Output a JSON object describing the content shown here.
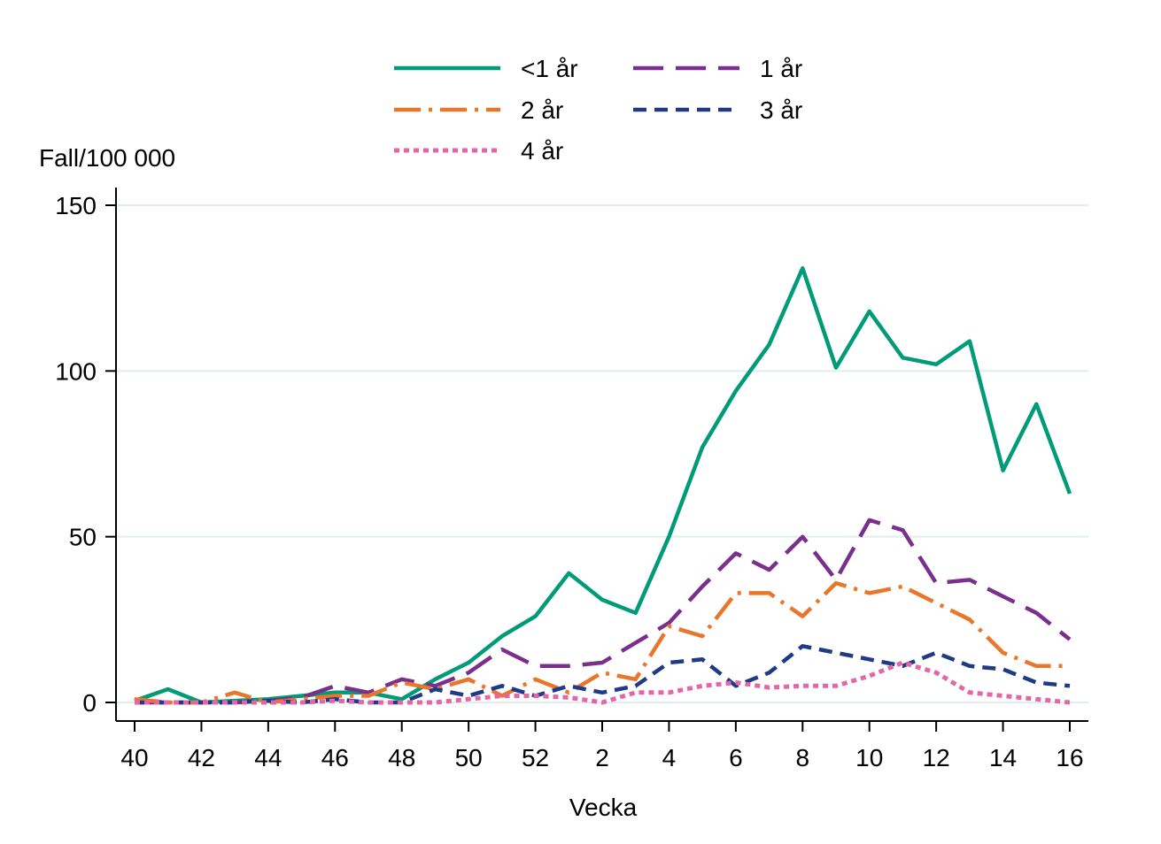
{
  "chart_data": {
    "type": "line",
    "title": "",
    "ylabel": "Fall/100 000",
    "xlabel": "Vecka",
    "ylim": [
      0,
      150
    ],
    "yticks": [
      0,
      50,
      100,
      150
    ],
    "grid": true,
    "legend_position": "top",
    "x": [
      "40",
      "41",
      "42",
      "43",
      "44",
      "45",
      "46",
      "47",
      "48",
      "49",
      "50",
      "51",
      "52",
      "1",
      "2",
      "3",
      "4",
      "5",
      "6",
      "7",
      "8",
      "9",
      "10",
      "11",
      "12",
      "13",
      "14",
      "15",
      "16"
    ],
    "xtick_labels": [
      "40",
      "42",
      "44",
      "46",
      "48",
      "50",
      "52",
      "2",
      "4",
      "6",
      "8",
      "10",
      "12",
      "14",
      "16"
    ],
    "series": [
      {
        "name": "<1 år",
        "color": "#009B77",
        "dash": "solid",
        "values": [
          0.5,
          4,
          0,
          0.5,
          1,
          2,
          3,
          3,
          1,
          7,
          12,
          20,
          26,
          39,
          31,
          27,
          50,
          77,
          94,
          108,
          131,
          101,
          118,
          104,
          102,
          109,
          70,
          90,
          63
        ]
      },
      {
        "name": "1 år",
        "color": "#7B2F8C",
        "dash": "longdash",
        "values": [
          0,
          0,
          0,
          0,
          0.5,
          1.5,
          5,
          3,
          7,
          5,
          9,
          16,
          11,
          11,
          12,
          18,
          24,
          35,
          45,
          40,
          50,
          37,
          55,
          52,
          36,
          37,
          32,
          27,
          19
        ]
      },
      {
        "name": "2 år",
        "color": "#E8762B",
        "dash": "dashdot",
        "values": [
          1,
          0,
          0,
          3,
          0,
          1,
          2,
          2,
          6,
          4,
          7,
          2,
          7,
          3,
          9,
          7,
          23,
          20,
          33,
          33,
          26,
          36,
          33,
          35,
          30,
          25,
          15,
          11,
          11
        ]
      },
      {
        "name": "3 år",
        "color": "#1F3A86",
        "dash": "dash",
        "values": [
          0,
          0,
          0,
          0,
          0.5,
          0,
          1,
          0,
          0,
          4,
          2,
          5,
          2,
          5,
          3,
          5,
          12,
          13,
          5,
          9,
          17,
          15,
          13,
          11,
          15,
          11,
          10,
          6,
          5
        ]
      },
      {
        "name": "4 år",
        "color": "#E366A9",
        "dash": "dot",
        "values": [
          0,
          0,
          0,
          0,
          0,
          0,
          0.5,
          0,
          0,
          0,
          1,
          2,
          2,
          1.5,
          0,
          3,
          3,
          5,
          6,
          4.5,
          5,
          5,
          8,
          12,
          9,
          3,
          2,
          1,
          0
        ]
      }
    ]
  }
}
